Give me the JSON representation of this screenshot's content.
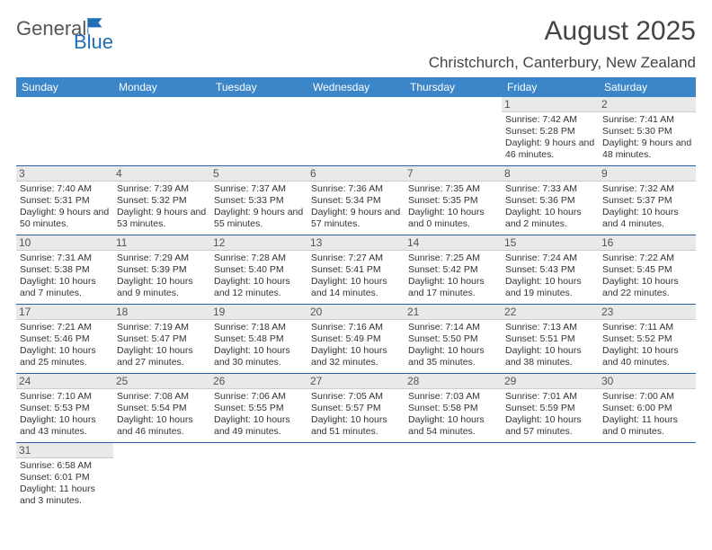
{
  "brand": {
    "part1": "General",
    "part2": "Blue"
  },
  "title": "August 2025",
  "subtitle": "Christchurch, Canterbury, New Zealand",
  "accent_color": "#3a86c8",
  "border_color": "#2b5fa3",
  "dayheader_bg": "#e9e9e9",
  "weekdays": [
    "Sunday",
    "Monday",
    "Tuesday",
    "Wednesday",
    "Thursday",
    "Friday",
    "Saturday"
  ],
  "days": {
    "1": {
      "sunrise": "7:42 AM",
      "sunset": "5:28 PM",
      "daylight": "9 hours and 46 minutes."
    },
    "2": {
      "sunrise": "7:41 AM",
      "sunset": "5:30 PM",
      "daylight": "9 hours and 48 minutes."
    },
    "3": {
      "sunrise": "7:40 AM",
      "sunset": "5:31 PM",
      "daylight": "9 hours and 50 minutes."
    },
    "4": {
      "sunrise": "7:39 AM",
      "sunset": "5:32 PM",
      "daylight": "9 hours and 53 minutes."
    },
    "5": {
      "sunrise": "7:37 AM",
      "sunset": "5:33 PM",
      "daylight": "9 hours and 55 minutes."
    },
    "6": {
      "sunrise": "7:36 AM",
      "sunset": "5:34 PM",
      "daylight": "9 hours and 57 minutes."
    },
    "7": {
      "sunrise": "7:35 AM",
      "sunset": "5:35 PM",
      "daylight": "10 hours and 0 minutes."
    },
    "8": {
      "sunrise": "7:33 AM",
      "sunset": "5:36 PM",
      "daylight": "10 hours and 2 minutes."
    },
    "9": {
      "sunrise": "7:32 AM",
      "sunset": "5:37 PM",
      "daylight": "10 hours and 4 minutes."
    },
    "10": {
      "sunrise": "7:31 AM",
      "sunset": "5:38 PM",
      "daylight": "10 hours and 7 minutes."
    },
    "11": {
      "sunrise": "7:29 AM",
      "sunset": "5:39 PM",
      "daylight": "10 hours and 9 minutes."
    },
    "12": {
      "sunrise": "7:28 AM",
      "sunset": "5:40 PM",
      "daylight": "10 hours and 12 minutes."
    },
    "13": {
      "sunrise": "7:27 AM",
      "sunset": "5:41 PM",
      "daylight": "10 hours and 14 minutes."
    },
    "14": {
      "sunrise": "7:25 AM",
      "sunset": "5:42 PM",
      "daylight": "10 hours and 17 minutes."
    },
    "15": {
      "sunrise": "7:24 AM",
      "sunset": "5:43 PM",
      "daylight": "10 hours and 19 minutes."
    },
    "16": {
      "sunrise": "7:22 AM",
      "sunset": "5:45 PM",
      "daylight": "10 hours and 22 minutes."
    },
    "17": {
      "sunrise": "7:21 AM",
      "sunset": "5:46 PM",
      "daylight": "10 hours and 25 minutes."
    },
    "18": {
      "sunrise": "7:19 AM",
      "sunset": "5:47 PM",
      "daylight": "10 hours and 27 minutes."
    },
    "19": {
      "sunrise": "7:18 AM",
      "sunset": "5:48 PM",
      "daylight": "10 hours and 30 minutes."
    },
    "20": {
      "sunrise": "7:16 AM",
      "sunset": "5:49 PM",
      "daylight": "10 hours and 32 minutes."
    },
    "21": {
      "sunrise": "7:14 AM",
      "sunset": "5:50 PM",
      "daylight": "10 hours and 35 minutes."
    },
    "22": {
      "sunrise": "7:13 AM",
      "sunset": "5:51 PM",
      "daylight": "10 hours and 38 minutes."
    },
    "23": {
      "sunrise": "7:11 AM",
      "sunset": "5:52 PM",
      "daylight": "10 hours and 40 minutes."
    },
    "24": {
      "sunrise": "7:10 AM",
      "sunset": "5:53 PM",
      "daylight": "10 hours and 43 minutes."
    },
    "25": {
      "sunrise": "7:08 AM",
      "sunset": "5:54 PM",
      "daylight": "10 hours and 46 minutes."
    },
    "26": {
      "sunrise": "7:06 AM",
      "sunset": "5:55 PM",
      "daylight": "10 hours and 49 minutes."
    },
    "27": {
      "sunrise": "7:05 AM",
      "sunset": "5:57 PM",
      "daylight": "10 hours and 51 minutes."
    },
    "28": {
      "sunrise": "7:03 AM",
      "sunset": "5:58 PM",
      "daylight": "10 hours and 54 minutes."
    },
    "29": {
      "sunrise": "7:01 AM",
      "sunset": "5:59 PM",
      "daylight": "10 hours and 57 minutes."
    },
    "30": {
      "sunrise": "7:00 AM",
      "sunset": "6:00 PM",
      "daylight": "11 hours and 0 minutes."
    },
    "31": {
      "sunrise": "6:58 AM",
      "sunset": "6:01 PM",
      "daylight": "11 hours and 3 minutes."
    }
  },
  "labels": {
    "sunrise": "Sunrise: ",
    "sunset": "Sunset: ",
    "daylight": "Daylight: "
  },
  "layout": [
    [
      null,
      null,
      null,
      null,
      null,
      "1",
      "2"
    ],
    [
      "3",
      "4",
      "5",
      "6",
      "7",
      "8",
      "9"
    ],
    [
      "10",
      "11",
      "12",
      "13",
      "14",
      "15",
      "16"
    ],
    [
      "17",
      "18",
      "19",
      "20",
      "21",
      "22",
      "23"
    ],
    [
      "24",
      "25",
      "26",
      "27",
      "28",
      "29",
      "30"
    ],
    [
      "31",
      null,
      null,
      null,
      null,
      null,
      null
    ]
  ]
}
